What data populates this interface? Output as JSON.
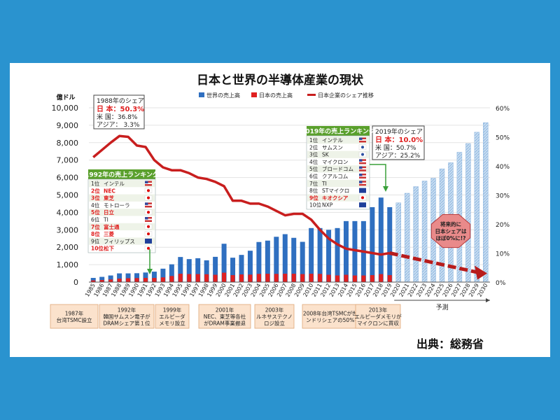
{
  "chart_data": {
    "type": "bar+line",
    "title": "日本と世界の半導体産業の現状",
    "y_left_unit": "億ドル",
    "y_left_ticks": [
      "0",
      "1,000",
      "2,000",
      "3,000",
      "4,000",
      "5,000",
      "6,000",
      "7,000",
      "8,000",
      "9,000",
      "10,000"
    ],
    "y_left_range": [
      0,
      10000
    ],
    "y_right_ticks": [
      "0%",
      "10%",
      "20%",
      "30%",
      "40%",
      "50%",
      "60%"
    ],
    "y_right_range": [
      0,
      60
    ],
    "legend": [
      "世界の売上高",
      "日本の売上高",
      "日本企業のシェア推移"
    ],
    "years": [
      "1985",
      "1986",
      "1987",
      "1988",
      "1989",
      "1990",
      "1991",
      "1992",
      "1993",
      "1994",
      "1995",
      "1996",
      "1997",
      "1998",
      "1999",
      "2000",
      "2001",
      "2002",
      "2003",
      "2004",
      "2005",
      "2006",
      "2007",
      "2008",
      "2009",
      "2010",
      "2011",
      "2012",
      "2013",
      "2014",
      "2015",
      "2016",
      "2017",
      "2018",
      "2019",
      "2020",
      "2021",
      "2022",
      "2023",
      "2024",
      "2025",
      "2026",
      "2027",
      "2028",
      "2029",
      "2030"
    ],
    "world_sales": [
      240,
      300,
      380,
      500,
      500,
      510,
      550,
      600,
      770,
      1020,
      1440,
      1320,
      1370,
      1250,
      1450,
      2200,
      1400,
      1560,
      1800,
      2300,
      2380,
      2600,
      2750,
      2540,
      2310,
      3100,
      3100,
      3000,
      3100,
      3500,
      3500,
      3500,
      4300,
      4850,
      4300,
      4550,
      5100,
      5480,
      5800,
      5960,
      6500,
      6850,
      7450,
      7950,
      8600,
      9150
    ],
    "japan_sales": [
      100,
      120,
      150,
      200,
      220,
      230,
      240,
      240,
      270,
      350,
      480,
      460,
      460,
      450,
      420,
      540,
      400,
      440,
      430,
      470,
      480,
      470,
      480,
      480,
      460,
      480,
      470,
      420,
      380,
      420,
      380,
      380,
      400,
      460,
      400
    ],
    "japan_share": [
      43,
      45.5,
      48,
      50.3,
      50,
      47,
      46.5,
      42,
      39.5,
      38.5,
      38.5,
      37.5,
      36,
      35.5,
      34.5,
      33,
      28,
      28,
      27,
      27,
      26,
      24.5,
      23,
      23.5,
      23.5,
      21.5,
      18,
      15,
      13,
      11.5,
      11,
      10.5,
      10,
      9.5,
      10
    ],
    "forecast_share_start": 10,
    "forecast_share_end": 3,
    "forecast_label": "予測",
    "annotations": {
      "share1988": {
        "title": "1988年のシェア",
        "lines": [
          "日 本：50.3%",
          "米 国：36.8%",
          "アジア：  3.3%"
        ]
      },
      "share2019": {
        "title": "2019年のシェア",
        "lines": [
          "日 本：10.0%",
          "米 国：50.7%",
          "アジア：25.2%"
        ]
      },
      "rank1992": {
        "title": "1992年の売上ランキング",
        "rows": [
          [
            "1位",
            "インテル"
          ],
          [
            "2位",
            "NEC"
          ],
          [
            "3位",
            "東芝"
          ],
          [
            "4位",
            "モトローラ"
          ],
          [
            "5位",
            "日立"
          ],
          [
            "6位",
            "TI"
          ],
          [
            "7位",
            "富士通"
          ],
          [
            "8位",
            "三菱"
          ],
          [
            "9位",
            "フィリップス"
          ],
          [
            "10位",
            "松下"
          ]
        ],
        "country": [
          "us",
          "jp",
          "jp",
          "us",
          "jp",
          "us",
          "jp",
          "jp",
          "eu",
          "jp"
        ]
      },
      "rank2019": {
        "title": "2019年の売上ランキング",
        "rows": [
          [
            "1位",
            "インテル"
          ],
          [
            "2位",
            "サムスン"
          ],
          [
            "3位",
            "SK"
          ],
          [
            "4位",
            "マイクロン"
          ],
          [
            "5位",
            "ブロードコム"
          ],
          [
            "6位",
            "クアルコム"
          ],
          [
            "7位",
            "TI"
          ],
          [
            "8位",
            "STマイクロ"
          ],
          [
            "9位",
            "キオクシア"
          ],
          [
            "10位",
            "NXP"
          ]
        ],
        "country": [
          "us",
          "kr",
          "kr",
          "us",
          "us",
          "us",
          "us",
          "eu",
          "jp",
          "eu"
        ]
      },
      "future": [
        "将来的に",
        "日本シェアは",
        "ほぼ0%に!?"
      ]
    },
    "events": [
      {
        "lines": [
          "1987年",
          "台湾TSMC設立"
        ]
      },
      {
        "lines": [
          "1992年",
          "韓国サムスン電子が",
          "DRAMシェア第１位"
        ]
      },
      {
        "lines": [
          "1999年",
          "エルピーダ",
          "メモリ設立"
        ]
      },
      {
        "lines": [
          "2001年",
          "NEC、東芝等各社",
          "がDRAM事業撤退"
        ]
      },
      {
        "lines": [
          "2003年",
          "ルネサステクノ",
          "ロジ設立"
        ]
      },
      {
        "lines": [
          "2008年台湾TSMCが世界ファ",
          "ンドリシェアの50%を獲得"
        ]
      },
      {
        "lines": [
          "2013年",
          "エルピーダメモリが",
          "マイクロンに買収"
        ]
      }
    ],
    "source": "出典：総務省",
    "colors": {
      "world": "#2f6fc0",
      "japan": "#e02020",
      "share": "#c81e1e",
      "forecast": "#b6d2ee",
      "event_bg": "#fbe2cc",
      "rank_header": "#5aa02c",
      "accent_red": "#e02020"
    }
  }
}
